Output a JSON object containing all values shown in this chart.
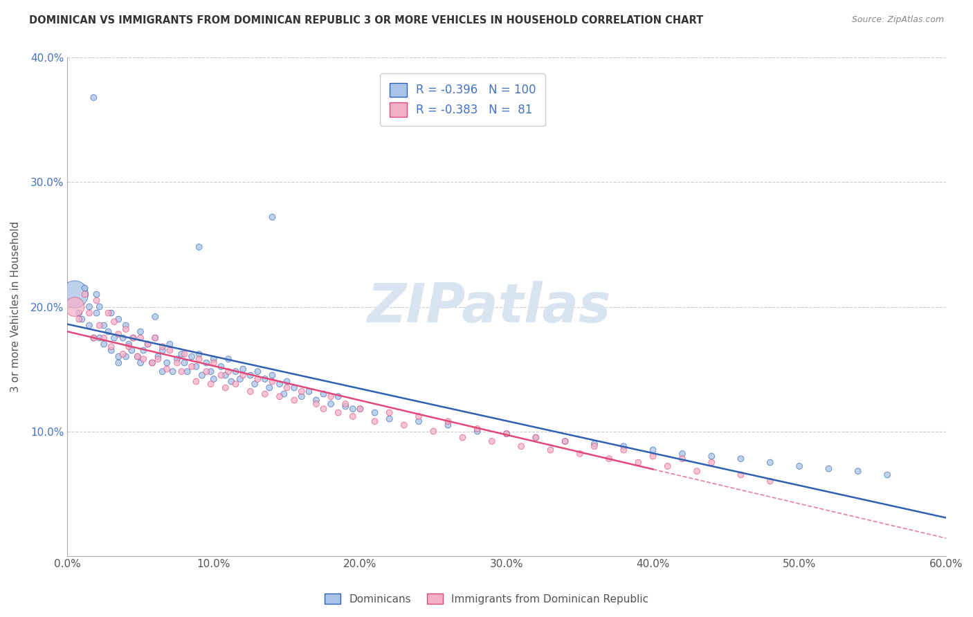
{
  "title": "DOMINICAN VS IMMIGRANTS FROM DOMINICAN REPUBLIC 3 OR MORE VEHICLES IN HOUSEHOLD CORRELATION CHART",
  "source": "Source: ZipAtlas.com",
  "ylabel": "3 or more Vehicles in Household",
  "xlim": [
    0.0,
    0.6
  ],
  "ylim": [
    0.0,
    0.4
  ],
  "legend_label1": "Dominicans",
  "legend_label2": "Immigrants from Dominican Republic",
  "r1": "-0.396",
  "n1": "100",
  "r2": "-0.383",
  "n2": "81",
  "color1": "#a8c4e8",
  "color2": "#f4b0c8",
  "line_color1": "#3060b0",
  "line_color2": "#e04878",
  "watermark_color": "#d8e4f0",
  "blue_x": [
    0.005,
    0.008,
    0.01,
    0.012,
    0.015,
    0.015,
    0.018,
    0.02,
    0.02,
    0.022,
    0.022,
    0.025,
    0.025,
    0.028,
    0.03,
    0.03,
    0.032,
    0.035,
    0.035,
    0.038,
    0.04,
    0.04,
    0.042,
    0.044,
    0.045,
    0.048,
    0.05,
    0.05,
    0.052,
    0.055,
    0.058,
    0.06,
    0.062,
    0.065,
    0.065,
    0.068,
    0.07,
    0.072,
    0.075,
    0.078,
    0.08,
    0.082,
    0.085,
    0.088,
    0.09,
    0.092,
    0.095,
    0.098,
    0.1,
    0.1,
    0.105,
    0.108,
    0.11,
    0.112,
    0.115,
    0.118,
    0.12,
    0.125,
    0.128,
    0.13,
    0.135,
    0.138,
    0.14,
    0.145,
    0.148,
    0.15,
    0.155,
    0.16,
    0.165,
    0.17,
    0.175,
    0.18,
    0.185,
    0.19,
    0.195,
    0.2,
    0.21,
    0.22,
    0.24,
    0.26,
    0.28,
    0.3,
    0.32,
    0.34,
    0.36,
    0.38,
    0.4,
    0.42,
    0.44,
    0.46,
    0.48,
    0.5,
    0.52,
    0.54,
    0.56,
    0.14,
    0.09,
    0.06,
    0.035,
    0.018
  ],
  "blue_y": [
    0.21,
    0.195,
    0.19,
    0.215,
    0.2,
    0.185,
    0.175,
    0.21,
    0.195,
    0.175,
    0.2,
    0.185,
    0.17,
    0.18,
    0.195,
    0.165,
    0.175,
    0.19,
    0.16,
    0.175,
    0.185,
    0.16,
    0.17,
    0.165,
    0.175,
    0.16,
    0.18,
    0.155,
    0.165,
    0.17,
    0.155,
    0.175,
    0.16,
    0.165,
    0.148,
    0.155,
    0.17,
    0.148,
    0.158,
    0.162,
    0.155,
    0.148,
    0.16,
    0.152,
    0.162,
    0.145,
    0.155,
    0.148,
    0.158,
    0.142,
    0.152,
    0.145,
    0.158,
    0.14,
    0.148,
    0.142,
    0.15,
    0.145,
    0.138,
    0.148,
    0.142,
    0.135,
    0.145,
    0.138,
    0.13,
    0.14,
    0.135,
    0.128,
    0.132,
    0.125,
    0.13,
    0.122,
    0.128,
    0.12,
    0.118,
    0.118,
    0.115,
    0.11,
    0.108,
    0.105,
    0.1,
    0.098,
    0.095,
    0.092,
    0.09,
    0.088,
    0.085,
    0.082,
    0.08,
    0.078,
    0.075,
    0.072,
    0.07,
    0.068,
    0.065,
    0.272,
    0.248,
    0.192,
    0.155,
    0.368
  ],
  "pink_x": [
    0.005,
    0.008,
    0.012,
    0.015,
    0.018,
    0.02,
    0.022,
    0.025,
    0.028,
    0.03,
    0.032,
    0.035,
    0.038,
    0.04,
    0.042,
    0.045,
    0.048,
    0.05,
    0.052,
    0.055,
    0.058,
    0.06,
    0.062,
    0.065,
    0.068,
    0.07,
    0.075,
    0.078,
    0.08,
    0.085,
    0.088,
    0.09,
    0.095,
    0.098,
    0.1,
    0.105,
    0.108,
    0.11,
    0.115,
    0.12,
    0.125,
    0.13,
    0.135,
    0.14,
    0.145,
    0.15,
    0.155,
    0.16,
    0.17,
    0.175,
    0.18,
    0.185,
    0.19,
    0.195,
    0.2,
    0.21,
    0.22,
    0.23,
    0.24,
    0.25,
    0.26,
    0.27,
    0.28,
    0.29,
    0.3,
    0.31,
    0.32,
    0.33,
    0.34,
    0.35,
    0.36,
    0.37,
    0.38,
    0.39,
    0.4,
    0.41,
    0.42,
    0.43,
    0.44,
    0.46,
    0.48
  ],
  "pink_y": [
    0.2,
    0.19,
    0.21,
    0.195,
    0.175,
    0.205,
    0.185,
    0.175,
    0.195,
    0.168,
    0.188,
    0.178,
    0.162,
    0.182,
    0.168,
    0.175,
    0.16,
    0.175,
    0.158,
    0.17,
    0.155,
    0.175,
    0.158,
    0.168,
    0.15,
    0.165,
    0.155,
    0.148,
    0.162,
    0.152,
    0.14,
    0.158,
    0.148,
    0.138,
    0.155,
    0.145,
    0.135,
    0.148,
    0.138,
    0.145,
    0.132,
    0.142,
    0.13,
    0.14,
    0.128,
    0.135,
    0.125,
    0.132,
    0.122,
    0.118,
    0.128,
    0.115,
    0.122,
    0.112,
    0.118,
    0.108,
    0.115,
    0.105,
    0.112,
    0.1,
    0.108,
    0.095,
    0.102,
    0.092,
    0.098,
    0.088,
    0.095,
    0.085,
    0.092,
    0.082,
    0.088,
    0.078,
    0.085,
    0.075,
    0.08,
    0.072,
    0.078,
    0.068,
    0.075,
    0.065,
    0.06
  ],
  "blue_sizes": [
    800,
    40,
    40,
    40,
    40,
    40,
    40,
    40,
    40,
    40,
    40,
    40,
    40,
    40,
    40,
    40,
    40,
    40,
    40,
    40,
    40,
    40,
    40,
    40,
    40,
    40,
    40,
    40,
    40,
    40,
    40,
    40,
    40,
    40,
    40,
    40,
    40,
    40,
    40,
    40,
    40,
    40,
    40,
    40,
    40,
    40,
    40,
    40,
    40,
    40,
    40,
    40,
    40,
    40,
    40,
    40,
    40,
    40,
    40,
    40,
    40,
    40,
    40,
    40,
    40,
    40,
    40,
    40,
    40,
    40,
    40,
    40,
    40,
    40,
    40,
    40,
    40,
    40,
    40,
    40,
    40,
    40,
    40,
    40,
    40,
    40,
    40,
    40,
    40,
    40,
    40,
    40,
    40,
    40,
    40,
    40,
    40,
    40,
    40,
    40
  ],
  "pink_sizes": [
    400,
    40,
    40,
    40,
    40,
    40,
    40,
    40,
    40,
    40,
    40,
    40,
    40,
    40,
    40,
    40,
    40,
    40,
    40,
    40,
    40,
    40,
    40,
    40,
    40,
    40,
    40,
    40,
    40,
    40,
    40,
    40,
    40,
    40,
    40,
    40,
    40,
    40,
    40,
    40,
    40,
    40,
    40,
    40,
    40,
    40,
    40,
    40,
    40,
    40,
    40,
    40,
    40,
    40,
    40,
    40,
    40,
    40,
    40,
    40,
    40,
    40,
    40,
    40,
    40,
    40,
    40,
    40,
    40,
    40,
    40,
    40,
    40,
    40,
    40,
    40,
    40,
    40,
    40,
    40,
    40
  ],
  "pink_dash_cutoff": 0.4
}
